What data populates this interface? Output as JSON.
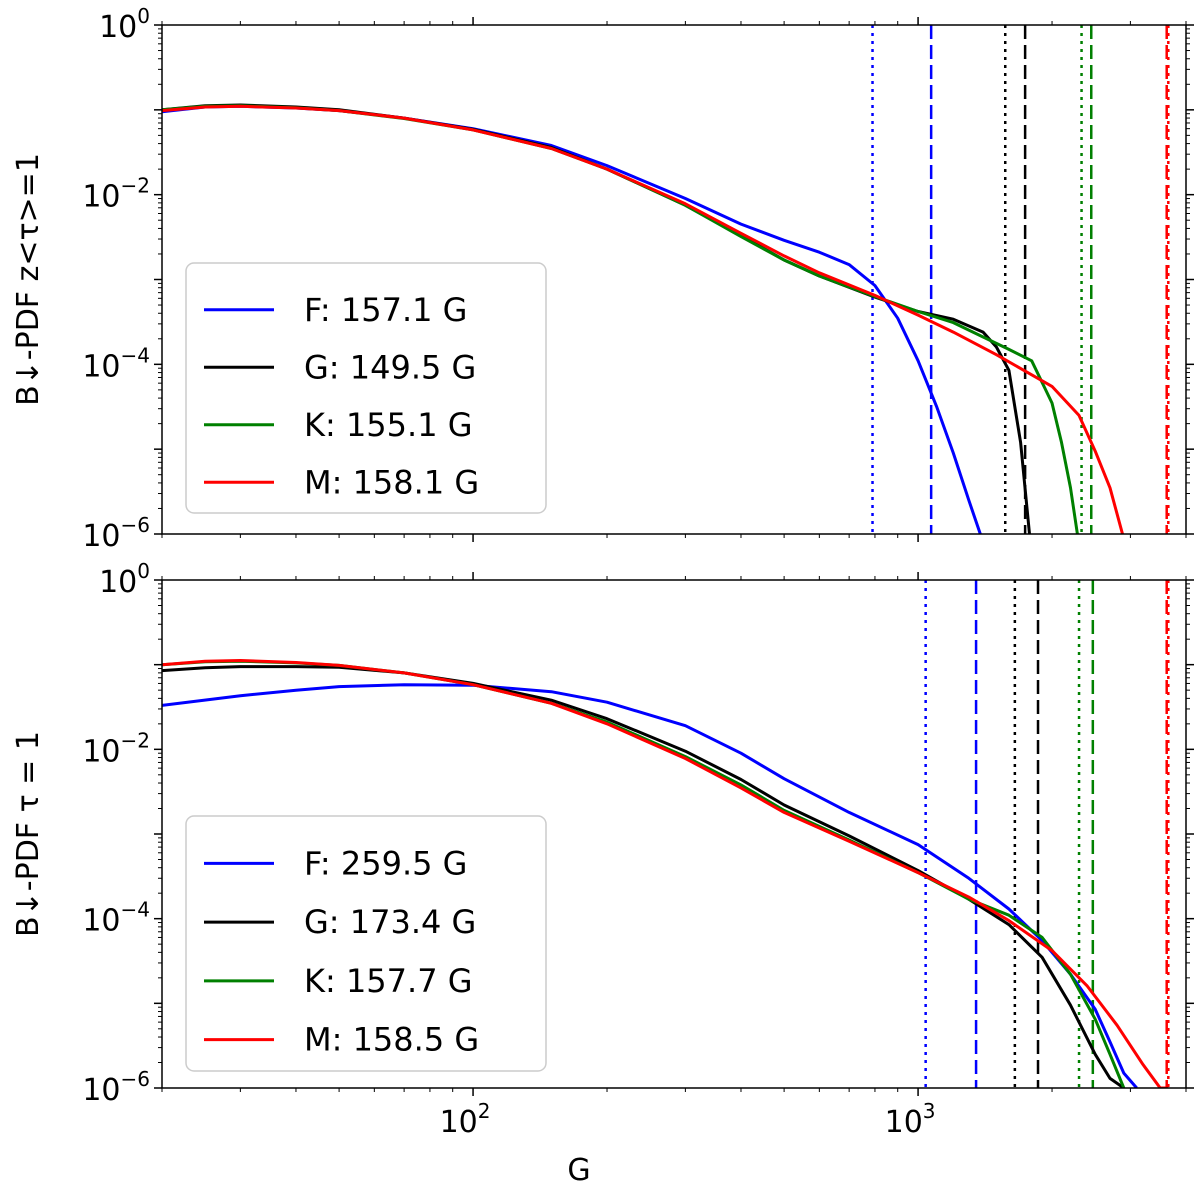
{
  "chart_data": [
    {
      "type": "line",
      "panel": "top",
      "ylabel": "B↓-PDF z<τ>=1",
      "xlabel": "",
      "xscale": "log",
      "yscale": "log",
      "xlim": [
        20,
        4000
      ],
      "ylim": [
        1e-06,
        1
      ],
      "yticks": [
        "10^0",
        "10^-2",
        "10^-4",
        "10^-6"
      ],
      "xticks": [
        "10^2",
        "10^3"
      ],
      "legend_position": "lower-left",
      "series": [
        {
          "name": "F: 157.1 G",
          "color": "#0000ff",
          "x": [
            20,
            25,
            30,
            40,
            50,
            70,
            100,
            150,
            200,
            300,
            400,
            500,
            600,
            700,
            800,
            900,
            1000,
            1100,
            1200,
            1300,
            1380
          ],
          "y": [
            0.095,
            0.108,
            0.11,
            0.105,
            0.098,
            0.08,
            0.06,
            0.038,
            0.022,
            0.009,
            0.0045,
            0.0029,
            0.0021,
            0.0015,
            0.00085,
            0.00035,
            0.00011,
            3.2e-05,
            9e-06,
            2.5e-06,
            1e-06
          ],
          "vline_dotted": 790,
          "vline_dashed": 1070
        },
        {
          "name": "G: 149.5 G",
          "color": "#000000",
          "x": [
            20,
            25,
            30,
            40,
            50,
            70,
            100,
            150,
            200,
            300,
            400,
            500,
            600,
            800,
            1000,
            1200,
            1400,
            1500,
            1600,
            1700,
            1780
          ],
          "y": [
            0.1,
            0.112,
            0.114,
            0.108,
            0.1,
            0.08,
            0.059,
            0.036,
            0.02,
            0.0075,
            0.0033,
            0.0017,
            0.0011,
            0.00062,
            0.00042,
            0.00034,
            0.00024,
            0.00016,
            8.5e-05,
            1.2e-05,
            1e-06
          ],
          "vline_dotted": 1570,
          "vline_dashed": 1740
        },
        {
          "name": "K: 155.1 G",
          "color": "#008000",
          "x": [
            20,
            25,
            30,
            40,
            50,
            70,
            100,
            150,
            200,
            300,
            400,
            500,
            600,
            800,
            1000,
            1200,
            1400,
            1600,
            1800,
            2000,
            2100,
            2200,
            2280
          ],
          "y": [
            0.1,
            0.11,
            0.112,
            0.106,
            0.098,
            0.079,
            0.058,
            0.035,
            0.02,
            0.0075,
            0.0032,
            0.0017,
            0.0011,
            0.00063,
            0.00042,
            0.00031,
            0.00021,
            0.00015,
            0.00011,
            3.5e-05,
            1.2e-05,
            3.5e-06,
            1e-06
          ],
          "vline_dotted": 2330,
          "vline_dashed": 2450
        },
        {
          "name": "M: 158.1 G",
          "color": "#ff0000",
          "x": [
            20,
            25,
            30,
            40,
            50,
            70,
            100,
            150,
            200,
            300,
            400,
            500,
            600,
            800,
            1000,
            1200,
            1500,
            2000,
            2300,
            2500,
            2700,
            2880
          ],
          "y": [
            0.098,
            0.108,
            0.11,
            0.105,
            0.098,
            0.08,
            0.058,
            0.035,
            0.02,
            0.0078,
            0.0035,
            0.0019,
            0.0012,
            0.00065,
            0.00038,
            0.00024,
            0.00013,
            5.5e-05,
            2.5e-05,
            9.5e-06,
            3.5e-06,
            1e-06
          ],
          "vline_dotted": 3650,
          "vline_dashed": 3620
        }
      ]
    },
    {
      "type": "line",
      "panel": "bottom",
      "ylabel": "B↓-PDF τ = 1",
      "xlabel": "G",
      "xscale": "log",
      "yscale": "log",
      "xlim": [
        20,
        4000
      ],
      "ylim": [
        1e-06,
        1
      ],
      "yticks": [
        "10^0",
        "10^-2",
        "10^-4",
        "10^-6"
      ],
      "xticks": [
        "10^2",
        "10^3"
      ],
      "legend_position": "lower-left",
      "series": [
        {
          "name": "F: 259.5 G",
          "color": "#0000ff",
          "x": [
            20,
            30,
            40,
            50,
            70,
            100,
            150,
            200,
            300,
            400,
            500,
            700,
            1000,
            1300,
            1600,
            1900,
            2200,
            2500,
            2700,
            2900,
            3100
          ],
          "y": [
            0.033,
            0.043,
            0.05,
            0.055,
            0.058,
            0.057,
            0.048,
            0.036,
            0.019,
            0.009,
            0.0045,
            0.0018,
            0.00075,
            0.0003,
            0.00013,
            5.5e-05,
            2.2e-05,
            8.5e-06,
            3.5e-06,
            1.5e-06,
            1e-06
          ],
          "vline_dotted": 1040,
          "vline_dashed": 1350
        },
        {
          "name": "G: 173.4 G",
          "color": "#000000",
          "x": [
            20,
            25,
            30,
            40,
            50,
            70,
            100,
            150,
            200,
            300,
            400,
            500,
            700,
            1000,
            1300,
            1600,
            1900,
            2200,
            2500,
            2700,
            2900
          ],
          "y": [
            0.085,
            0.092,
            0.095,
            0.095,
            0.093,
            0.08,
            0.06,
            0.038,
            0.023,
            0.0095,
            0.0044,
            0.0022,
            0.00095,
            0.00037,
            0.00017,
            8.5e-05,
            3.5e-05,
            9.5e-06,
            2.5e-06,
            1.3e-06,
            1e-06
          ],
          "vline_dotted": 1650,
          "vline_dashed": 1860
        },
        {
          "name": "K: 157.7 G",
          "color": "#008000",
          "x": [
            20,
            25,
            30,
            40,
            50,
            70,
            100,
            150,
            200,
            300,
            400,
            500,
            700,
            1000,
            1300,
            1600,
            1900,
            2200,
            2500,
            2700,
            2900
          ],
          "y": [
            0.1,
            0.108,
            0.11,
            0.105,
            0.098,
            0.08,
            0.058,
            0.035,
            0.021,
            0.0082,
            0.0038,
            0.0019,
            0.00085,
            0.00035,
            0.00017,
            0.00011,
            6e-05,
            2.2e-05,
            6.5e-06,
            2.5e-06,
            1e-06
          ],
          "vline_dotted": 2300,
          "vline_dashed": 2470
        },
        {
          "name": "M: 158.5 G",
          "color": "#ff0000",
          "x": [
            20,
            25,
            30,
            40,
            50,
            70,
            100,
            150,
            200,
            300,
            400,
            500,
            700,
            1000,
            1300,
            1600,
            2000,
            2400,
            2800,
            3200,
            3500,
            3650
          ],
          "y": [
            0.1,
            0.11,
            0.112,
            0.106,
            0.098,
            0.08,
            0.058,
            0.035,
            0.02,
            0.0078,
            0.0035,
            0.0018,
            0.00082,
            0.00035,
            0.00018,
            9.5e-05,
            4.2e-05,
            1.6e-05,
            5.5e-06,
            1.9e-06,
            1e-06,
            1e-06
          ],
          "vline_dotted": 3650,
          "vline_dashed": 3620
        }
      ]
    }
  ]
}
